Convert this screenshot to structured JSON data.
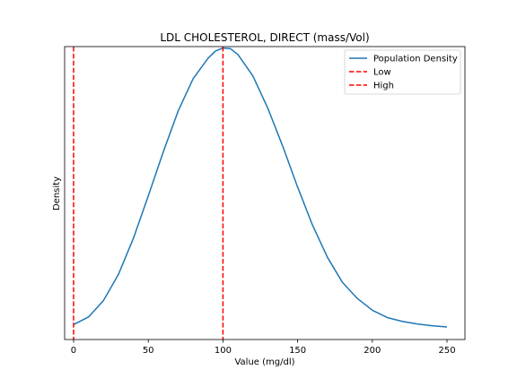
{
  "chart_data": {
    "type": "line",
    "title": "LDL CHOLESTEROL, DIRECT (mass/Vol)",
    "xlabel": "Value (mg/dl)",
    "ylabel": "Density",
    "xlim": [
      -6,
      262
    ],
    "ylim": [
      0,
      1.0
    ],
    "x_ticks": [
      0,
      50,
      100,
      150,
      200,
      250
    ],
    "y_ticks": [],
    "grid": false,
    "legend_position": "top-right",
    "series": [
      {
        "name": "Population Density",
        "kind": "line",
        "color": "#1f77b4",
        "style": "solid",
        "x": [
          0,
          10,
          20,
          30,
          40,
          50,
          60,
          70,
          80,
          90,
          95,
          100,
          105,
          110,
          120,
          130,
          140,
          150,
          160,
          170,
          180,
          190,
          200,
          210,
          220,
          230,
          240,
          250
        ],
        "y": [
          0.051,
          0.077,
          0.133,
          0.222,
          0.345,
          0.49,
          0.64,
          0.78,
          0.89,
          0.96,
          0.985,
          0.995,
          0.993,
          0.973,
          0.9,
          0.79,
          0.66,
          0.52,
          0.39,
          0.28,
          0.195,
          0.14,
          0.1,
          0.075,
          0.062,
          0.053,
          0.047,
          0.043
        ]
      },
      {
        "name": "Low",
        "kind": "vline",
        "color": "#ff0000",
        "style": "dashed",
        "x_value": 0
      },
      {
        "name": "High",
        "kind": "vline",
        "color": "#ff0000",
        "style": "dashed",
        "x_value": 100
      }
    ]
  }
}
